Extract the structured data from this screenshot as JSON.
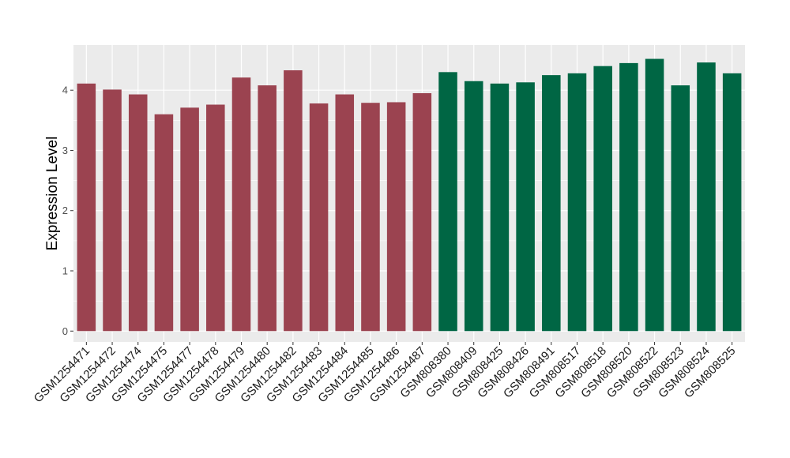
{
  "chart_data": {
    "type": "bar",
    "title": "",
    "xlabel": "",
    "ylabel": "Expression Level",
    "ylim": [
      -0.18,
      4.75
    ],
    "yticks": [
      0,
      1,
      2,
      3,
      4
    ],
    "grid": true,
    "legend": "none",
    "background_color": "#EBEBEB",
    "grid_color": "#FFFFFF",
    "categories": [
      "GSM1254471",
      "GSM1254472",
      "GSM1254474",
      "GSM1254475",
      "GSM1254477",
      "GSM1254478",
      "GSM1254479",
      "GSM1254480",
      "GSM1254482",
      "GSM1254483",
      "GSM1254484",
      "GSM1254485",
      "GSM1254486",
      "GSM1254487",
      "GSM808380",
      "GSM808409",
      "GSM808425",
      "GSM808426",
      "GSM808491",
      "GSM808517",
      "GSM808518",
      "GSM808520",
      "GSM808522",
      "GSM808523",
      "GSM808524",
      "GSM808525"
    ],
    "values": [
      4.11,
      4.01,
      3.93,
      3.6,
      3.71,
      3.76,
      4.21,
      4.08,
      4.33,
      3.78,
      3.93,
      3.79,
      3.8,
      3.95,
      4.3,
      4.15,
      4.11,
      4.13,
      4.25,
      4.28,
      4.4,
      4.45,
      4.52,
      4.08,
      4.46,
      4.28
    ],
    "bar_colors": [
      "#9B4350",
      "#9B4350",
      "#9B4350",
      "#9B4350",
      "#9B4350",
      "#9B4350",
      "#9B4350",
      "#9B4350",
      "#9B4350",
      "#9B4350",
      "#9B4350",
      "#9B4350",
      "#9B4350",
      "#9B4350",
      "#006644",
      "#006644",
      "#006644",
      "#006644",
      "#006644",
      "#006644",
      "#006644",
      "#006644",
      "#006644",
      "#006644",
      "#006644",
      "#006644"
    ]
  }
}
